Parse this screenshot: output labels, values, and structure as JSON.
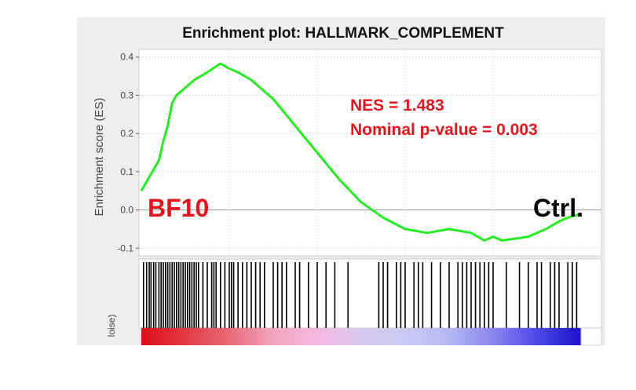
{
  "chart_data": {
    "type": "line",
    "title": "Enrichment plot: HALLMARK_COMPLEMENT",
    "ylabel": "Enrichment score (ES)",
    "bottom_ylabel_fragment": "loise)",
    "ylim": [
      -0.12,
      0.42
    ],
    "yticks": [
      "0.4",
      "0.3",
      "0.2",
      "0.1",
      "0.0",
      "-0.1"
    ],
    "grid": true,
    "series": [
      {
        "color": "#22ee22",
        "x": [
          0.0,
          0.02,
          0.04,
          0.05,
          0.06,
          0.07,
          0.08,
          0.1,
          0.12,
          0.15,
          0.18,
          0.2,
          0.22,
          0.25,
          0.3,
          0.35,
          0.4,
          0.45,
          0.5,
          0.55,
          0.6,
          0.65,
          0.7,
          0.75,
          0.78,
          0.8,
          0.82,
          0.85,
          0.88,
          0.9,
          0.92,
          0.95,
          0.97,
          1.0
        ],
        "values": [
          0.05,
          0.09,
          0.13,
          0.18,
          0.22,
          0.28,
          0.3,
          0.32,
          0.34,
          0.36,
          0.383,
          0.37,
          0.36,
          0.34,
          0.29,
          0.22,
          0.15,
          0.08,
          0.02,
          -0.02,
          -0.05,
          -0.06,
          -0.05,
          -0.06,
          -0.08,
          -0.07,
          -0.08,
          -0.075,
          -0.07,
          -0.06,
          -0.05,
          -0.03,
          -0.02,
          -0.01
        ]
      }
    ],
    "annotations": {
      "nes": "NES = 1.483",
      "pvalue": "Nominal p-value = 0.003",
      "left_label": "BF10",
      "right_label": "Ctrl."
    },
    "colors": {
      "curve": "#22ee22",
      "annotation": "#e8141c",
      "left_label": "#e8141c",
      "right_label": "#000000",
      "hits": "#000000"
    },
    "hit_positions": [
      0.005,
      0.012,
      0.018,
      0.022,
      0.028,
      0.033,
      0.04,
      0.045,
      0.05,
      0.055,
      0.06,
      0.065,
      0.07,
      0.075,
      0.08,
      0.085,
      0.09,
      0.095,
      0.1,
      0.105,
      0.11,
      0.115,
      0.12,
      0.125,
      0.13,
      0.14,
      0.15,
      0.16,
      0.165,
      0.17,
      0.18,
      0.19,
      0.2,
      0.205,
      0.21,
      0.22,
      0.23,
      0.24,
      0.25,
      0.26,
      0.27,
      0.28,
      0.3,
      0.31,
      0.32,
      0.33,
      0.35,
      0.36,
      0.38,
      0.4,
      0.42,
      0.44,
      0.47,
      0.54,
      0.55,
      0.56,
      0.58,
      0.59,
      0.6,
      0.62,
      0.63,
      0.64,
      0.66,
      0.68,
      0.7,
      0.72,
      0.73,
      0.74,
      0.75,
      0.76,
      0.77,
      0.78,
      0.79,
      0.8,
      0.83,
      0.86,
      0.88,
      0.9,
      0.91,
      0.93,
      0.94,
      0.95,
      0.97,
      0.98,
      0.99
    ],
    "rank_gradient": [
      "#e00d1a",
      "#e23a45",
      "#e86a76",
      "#f2a5c0",
      "#f5b8e0",
      "#d8c8ee",
      "#c9caf4",
      "#b4b8f2",
      "#8a86ee",
      "#4d48e8",
      "#1f12c9"
    ]
  }
}
